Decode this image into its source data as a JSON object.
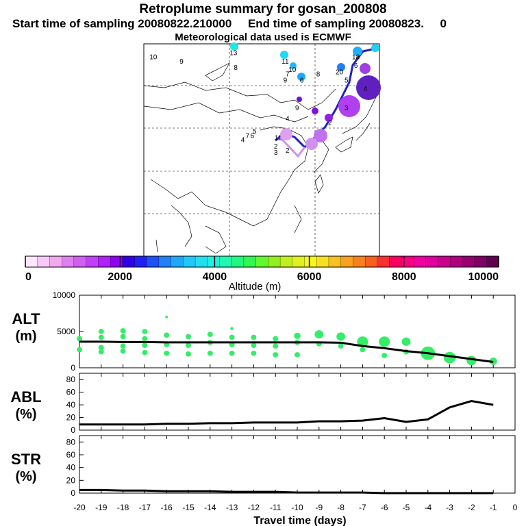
{
  "header": {
    "title": "Retroplume summary for gosan_200808",
    "sampling_line": "Start time of sampling 20080822.210000     End time of sampling 20080823.     0",
    "met_line": "Meteorological data used is ECMWF"
  },
  "colorbar": {
    "label": "Altitude (m)",
    "ticks": [
      "0",
      "2000",
      "4000",
      "6000",
      "8000",
      "10000"
    ],
    "min": 0,
    "max": 10000,
    "colors": [
      "#ffe8ff",
      "#f8c8f8",
      "#f0a8f0",
      "#e080f0",
      "#d060f0",
      "#c040f8",
      "#b020f8",
      "#9000f0",
      "#3000e8",
      "#2020f0",
      "#2050f8",
      "#2080f8",
      "#20a8f8",
      "#20c8f8",
      "#20e0f0",
      "#20f0e0",
      "#20f8b0",
      "#20f880",
      "#30f850",
      "#60f830",
      "#90f020",
      "#c0f020",
      "#e0f020",
      "#f8f820",
      "#f8e020",
      "#f8c020",
      "#f8a020",
      "#f88020",
      "#f86020",
      "#f83030",
      "#f80060",
      "#f80080",
      "#f000a0",
      "#e000a0",
      "#c8008c",
      "#b00080",
      "#980070",
      "#800068",
      "#600050"
    ]
  },
  "map": {
    "tracer_labels": [
      {
        "text": "10",
        "lon": 0.04,
        "lat": 0.06
      },
      {
        "text": "9",
        "lon": 0.16,
        "lat": 0.08
      },
      {
        "text": "13",
        "lon": 0.38,
        "lat": 0.04
      },
      {
        "text": "8",
        "lon": 0.39,
        "lat": 0.11
      },
      {
        "text": "11",
        "lon": 0.6,
        "lat": 0.08
      },
      {
        "text": "10",
        "lon": 0.63,
        "lat": 0.12
      },
      {
        "text": "7",
        "lon": 0.61,
        "lat": 0.14
      },
      {
        "text": "9",
        "lon": 0.6,
        "lat": 0.17
      },
      {
        "text": "6",
        "lon": 0.67,
        "lat": 0.17
      },
      {
        "text": "8",
        "lon": 0.74,
        "lat": 0.14
      },
      {
        "text": "20",
        "lon": 0.83,
        "lat": 0.13
      },
      {
        "text": "18",
        "lon": 0.9,
        "lat": 0.06
      },
      {
        "text": "6",
        "lon": 0.9,
        "lat": 0.1
      },
      {
        "text": "5",
        "lon": 0.86,
        "lat": 0.17
      },
      {
        "text": "4",
        "lon": 0.94,
        "lat": 0.21
      },
      {
        "text": "3",
        "lon": 0.86,
        "lat": 0.3
      },
      {
        "text": "9",
        "lon": 0.65,
        "lat": 0.3
      },
      {
        "text": "4",
        "lon": 0.61,
        "lat": 0.35
      },
      {
        "text": "5",
        "lon": 0.47,
        "lat": 0.41
      },
      {
        "text": "7",
        "lon": 0.44,
        "lat": 0.43
      },
      {
        "text": "6",
        "lon": 0.46,
        "lat": 0.43
      },
      {
        "text": "4",
        "lon": 0.42,
        "lat": 0.45
      },
      {
        "text": "11",
        "lon": 0.57,
        "lat": 0.44
      },
      {
        "text": "2",
        "lon": 0.56,
        "lat": 0.48
      },
      {
        "text": "2",
        "lon": 0.61,
        "lat": 0.5
      },
      {
        "text": "3",
        "lon": 0.56,
        "lat": 0.51
      },
      {
        "text": "2",
        "lon": 0.79,
        "lat": 0.37
      }
    ]
  },
  "chart_data": [
    {
      "type": "scatter",
      "panel_label": "ALT (m)",
      "label_line1": "ALT",
      "label_line2": "(m)",
      "ylim": [
        0,
        10000
      ],
      "yticks": [
        "0",
        "5000",
        "10000"
      ],
      "xlabel": "Travel time (days)",
      "xlim": [
        -20,
        0
      ],
      "xticks": [
        "-20",
        "-19",
        "-18",
        "-17",
        "-16",
        "-15",
        "-14",
        "-13",
        "-12",
        "-11",
        "-10",
        "-9",
        "-8",
        "-7",
        "-6",
        "-5",
        "-4",
        "-3",
        "-2",
        "-1",
        "0"
      ],
      "mean_line": {
        "x": [
          -20,
          -19,
          -18,
          -17,
          -16,
          -15,
          -14,
          -13,
          -12,
          -11,
          -10,
          -9,
          -8,
          -7,
          -6,
          -5,
          -4,
          -3,
          -2,
          -1
        ],
        "y": [
          3600,
          3600,
          3550,
          3550,
          3500,
          3500,
          3500,
          3500,
          3500,
          3500,
          3500,
          3500,
          3450,
          3000,
          2700,
          2300,
          2000,
          1600,
          1200,
          800
        ]
      },
      "clusters": [
        {
          "x": -20,
          "y": [
            4000,
            2500
          ],
          "size": [
            1,
            1
          ]
        },
        {
          "x": -19,
          "y": [
            5000,
            4200,
            2800,
            2200
          ],
          "size": [
            1,
            1,
            1,
            1
          ]
        },
        {
          "x": -18,
          "y": [
            5100,
            4300,
            3000,
            2300
          ],
          "size": [
            1,
            1,
            1,
            1
          ]
        },
        {
          "x": -17,
          "y": [
            5000,
            4000,
            3100,
            2100
          ],
          "size": [
            1,
            1,
            1,
            1
          ]
        },
        {
          "x": -16,
          "y": [
            7000,
            4500,
            3200,
            2000
          ],
          "size": [
            0.5,
            1,
            1,
            1
          ]
        },
        {
          "x": -15,
          "y": [
            4300,
            3100,
            1900
          ],
          "size": [
            1,
            1,
            1
          ]
        },
        {
          "x": -14,
          "y": [
            4600,
            3500,
            2000
          ],
          "size": [
            1,
            1,
            1
          ]
        },
        {
          "x": -13,
          "y": [
            5400,
            4200,
            3200,
            2000
          ],
          "size": [
            0.6,
            1,
            1,
            1
          ]
        },
        {
          "x": -12,
          "y": [
            4200,
            3100,
            2000
          ],
          "size": [
            1,
            1,
            1
          ]
        },
        {
          "x": -11,
          "y": [
            4000,
            3000,
            1800
          ],
          "size": [
            1,
            1,
            1
          ]
        },
        {
          "x": -10,
          "y": [
            4400,
            3500,
            1800
          ],
          "size": [
            1.2,
            1,
            1
          ]
        },
        {
          "x": -9,
          "y": [
            4600,
            3300
          ],
          "size": [
            1.6,
            1
          ]
        },
        {
          "x": -8,
          "y": [
            4300,
            3000
          ],
          "size": [
            1.6,
            1
          ]
        },
        {
          "x": -7,
          "y": [
            3600,
            2500
          ],
          "size": [
            2,
            1
          ]
        },
        {
          "x": -6,
          "y": [
            3600,
            1700
          ],
          "size": [
            2,
            1
          ]
        },
        {
          "x": -5,
          "y": [
            3600,
            2200
          ],
          "size": [
            1.6,
            1
          ]
        },
        {
          "x": -4,
          "y": [
            2000
          ],
          "size": [
            2.6
          ]
        },
        {
          "x": -3,
          "y": [
            1400
          ],
          "size": [
            2.2
          ]
        },
        {
          "x": -2,
          "y": [
            1000
          ],
          "size": [
            1.8
          ]
        },
        {
          "x": -1,
          "y": [
            900
          ],
          "size": [
            1.4
          ]
        }
      ]
    },
    {
      "type": "line",
      "panel_label": "ABL (%)",
      "label_line1": "ABL",
      "label_line2": "(%)",
      "ylim": [
        0,
        90
      ],
      "yticks": [
        "0",
        "20",
        "40",
        "60",
        "80"
      ],
      "x": [
        -20,
        -19,
        -18,
        -17,
        -16,
        -15,
        -14,
        -13,
        -12,
        -11,
        -10,
        -9,
        -8,
        -7,
        -6,
        -5,
        -4,
        -3,
        -2,
        -1
      ],
      "y": [
        9,
        9,
        9,
        9,
        10,
        10,
        11,
        11,
        12,
        12,
        12,
        14,
        14,
        15,
        19,
        13,
        17,
        36,
        46,
        40
      ]
    },
    {
      "type": "line",
      "panel_label": "STR (%)",
      "label_line1": "STR",
      "label_line2": "(%)",
      "ylim": [
        0,
        90
      ],
      "yticks": [
        "0",
        "20",
        "40",
        "60",
        "80"
      ],
      "x": [
        -20,
        -19,
        -18,
        -17,
        -16,
        -15,
        -14,
        -13,
        -12,
        -11,
        -10,
        -9,
        -8,
        -7,
        -6,
        -5,
        -4,
        -3,
        -2,
        -1
      ],
      "y": [
        5,
        5,
        4,
        4,
        3,
        3,
        3,
        2,
        2,
        2,
        1,
        1,
        1,
        1,
        0,
        0,
        0,
        0,
        0,
        0
      ]
    }
  ]
}
